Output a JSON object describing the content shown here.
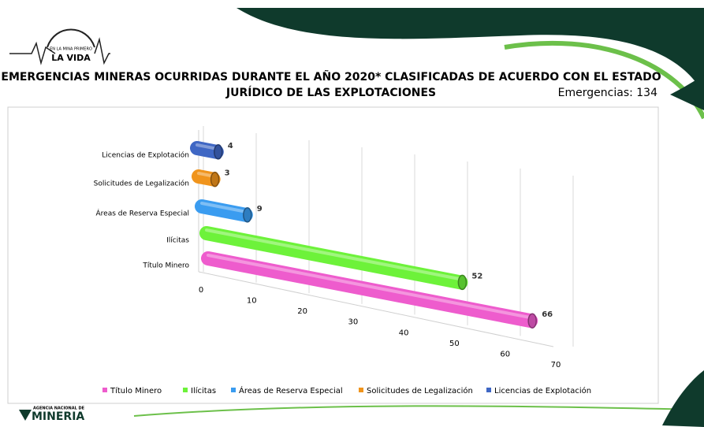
{
  "header": {
    "logo_top": "EN LA MINA PRIMERO",
    "logo_main": "LA VIDA",
    "title_lines": [
      "EMERGENCIAS MINERAS OCURRIDAS DURANTE EL AÑO 2020* CLASIFICADAS DE ACUERDO CON EL ESTADO",
      "JURÍDICO DE LAS EXPLOTACIONES"
    ],
    "subtitle": "Emergencias: 134"
  },
  "footer": {
    "agency_top": "AGENCIA NACIONAL DE",
    "agency_main": "MINERIA"
  },
  "chart_data": {
    "type": "bar",
    "orientation": "horizontal",
    "categories": [
      "Licencias de Explotación",
      "Solicitudes de Legalización",
      "Áreas de Reserva Especial",
      "Ilícitas",
      "Título Minero"
    ],
    "values": [
      4,
      3,
      9,
      52,
      66
    ],
    "colors": [
      "#3f67c4",
      "#f0941c",
      "#3a9cf0",
      "#6df23a",
      "#ee5ccd"
    ],
    "xlim": [
      0,
      70
    ],
    "xticks": [
      0,
      10,
      20,
      30,
      40,
      50,
      60,
      70
    ],
    "grid": true,
    "legend": "bottom"
  }
}
